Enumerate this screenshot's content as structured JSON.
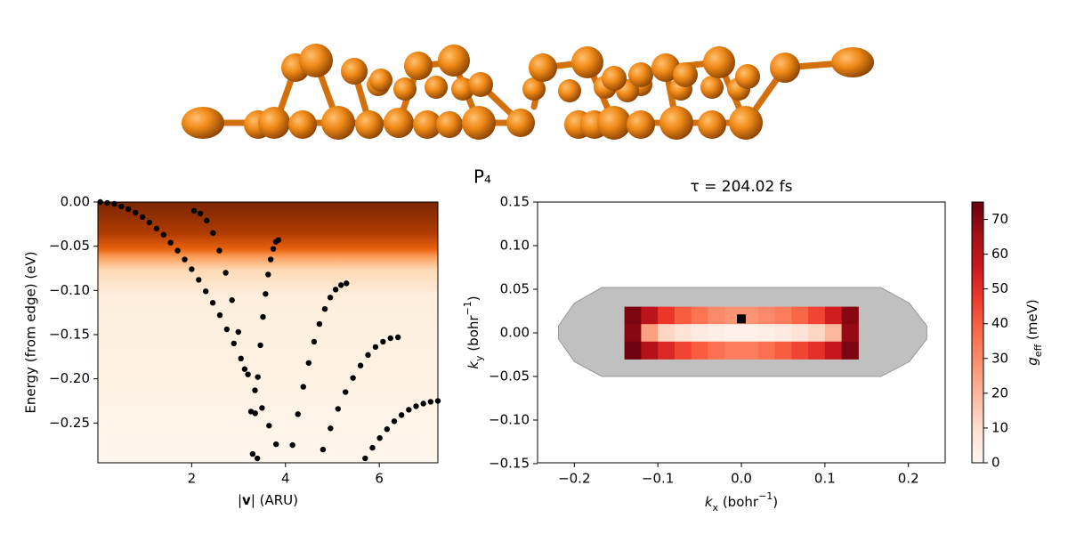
{
  "figure": {
    "title": "P₄"
  },
  "chart_data": [
    {
      "type": "scatter",
      "xlabel": [
        "|",
        "v",
        "| (ARU)"
      ],
      "ylabel": "Energy (from edge) (eV)",
      "color": "#000000",
      "x": [
        0.05,
        0.2,
        0.35,
        0.5,
        0.65,
        0.8,
        0.95,
        1.1,
        1.25,
        1.4,
        1.55,
        1.7,
        1.85,
        2.0,
        2.15,
        2.3,
        2.45,
        2.6,
        2.75,
        2.9,
        3.05,
        3.2,
        3.35,
        3.5,
        3.65,
        3.8,
        2.05,
        2.185,
        2.32,
        2.455,
        2.59,
        2.725,
        2.86,
        2.995,
        3.13,
        3.265,
        3.4,
        3.85,
        3.795,
        3.74,
        3.685,
        3.63,
        3.575,
        3.52,
        3.465,
        3.41,
        3.355,
        3.3,
        5.3,
        5.185,
        5.07,
        4.955,
        4.84,
        4.725,
        4.61,
        4.495,
        4.38,
        4.265,
        4.15,
        6.4,
        6.24,
        6.08,
        5.92,
        5.76,
        5.6,
        5.44,
        5.28,
        5.12,
        4.96,
        4.8,
        7.25,
        7.095,
        6.94,
        6.785,
        6.63,
        6.475,
        6.32,
        6.165,
        6.01,
        5.855,
        5.7
      ],
      "values": [
        0,
        -0.001,
        -0.002,
        -0.005,
        -0.008,
        -0.012,
        -0.017,
        -0.023,
        -0.03,
        -0.037,
        -0.046,
        -0.055,
        -0.065,
        -0.076,
        -0.088,
        -0.101,
        -0.114,
        -0.128,
        -0.144,
        -0.16,
        -0.177,
        -0.195,
        -0.213,
        -0.233,
        -0.253,
        -0.274,
        -0.01,
        -0.013,
        -0.021,
        -0.035,
        -0.055,
        -0.08,
        -0.111,
        -0.147,
        -0.189,
        -0.237,
        -0.29,
        -0.043,
        -0.045,
        -0.053,
        -0.065,
        -0.082,
        -0.104,
        -0.13,
        -0.162,
        -0.198,
        -0.239,
        -0.285,
        -0.092,
        -0.094,
        -0.099,
        -0.108,
        -0.121,
        -0.138,
        -0.158,
        -0.182,
        -0.209,
        -0.24,
        -0.275,
        -0.153,
        -0.154,
        -0.158,
        -0.164,
        -0.173,
        -0.185,
        -0.199,
        -0.215,
        -0.234,
        -0.256,
        -0.28,
        -0.225,
        -0.226,
        -0.228,
        -0.231,
        -0.235,
        -0.241,
        -0.248,
        -0.257,
        -0.267,
        -0.278,
        -0.29
      ],
      "xlim": [
        0,
        7.25
      ],
      "ylim": [
        -0.295,
        0
      ],
      "xticks": [
        2,
        4,
        6
      ],
      "yticks": [
        {
          "value": 0,
          "label": "0.00"
        },
        {
          "value": -0.05,
          "label": "−0.05"
        },
        {
          "value": -0.1,
          "label": "−0.10"
        },
        {
          "value": -0.15,
          "label": "−0.15"
        },
        {
          "value": -0.2,
          "label": "−0.20"
        },
        {
          "value": -0.25,
          "label": "−0.25"
        }
      ]
    },
    {
      "type": "heatmap",
      "title": "τ =  204.02 fs",
      "xlabel": [
        "k",
        "x",
        " (bohr",
        "−1",
        ")"
      ],
      "ylabel": [
        "k",
        "y",
        " (bohr",
        "−1",
        ")"
      ],
      "colormap": "Reds",
      "x": [
        -0.13,
        -0.11,
        -0.09,
        -0.07,
        -0.05,
        -0.03,
        -0.01,
        0.01,
        0.03,
        0.05,
        0.07,
        0.09,
        0.11,
        0.13
      ],
      "y": [
        0.02,
        0,
        -0.02
      ],
      "z": [
        [
          72,
          60,
          48,
          40,
          35,
          30,
          28,
          28,
          30,
          33,
          38,
          45,
          55,
          70
        ],
        [
          70,
          25,
          12,
          8,
          5,
          3,
          2,
          2,
          3,
          5,
          8,
          12,
          20,
          68
        ],
        [
          74,
          62,
          52,
          45,
          40,
          36,
          33,
          33,
          36,
          40,
          45,
          50,
          58,
          72
        ]
      ],
      "region": {
        "color": "#c0c0c0",
        "x": [
          -0.219,
          -0.2,
          -0.167,
          0.167,
          0.201,
          0.222,
          0.222,
          0.201,
          0.167,
          -0.167,
          -0.2,
          -0.219
        ],
        "y": [
          0.008,
          0.034,
          0.052,
          0.052,
          0.034,
          0.008,
          -0.007,
          -0.033,
          -0.05,
          -0.05,
          -0.033,
          -0.007
        ]
      },
      "marker": {
        "x": 0,
        "y": 0.016,
        "color": "#000000"
      },
      "xlim": [
        -0.244,
        0.244
      ],
      "ylim": [
        -0.149,
        0.15
      ],
      "xticks": [
        {
          "value": -0.2,
          "label": "−0.2"
        },
        {
          "value": -0.1,
          "label": "−0.1"
        },
        {
          "value": 0,
          "label": "0.0"
        },
        0.1,
        0.2
      ],
      "yticks": [
        {
          "value": -0.15,
          "label": "−0.15"
        },
        {
          "value": -0.1,
          "label": "−0.10"
        },
        {
          "value": -0.05,
          "label": "−0.05"
        },
        {
          "value": 0,
          "label": "0.00"
        },
        0.05,
        {
          "value": 0.1,
          "label": "0.10"
        },
        0.15
      ],
      "colorbar": {
        "label": [
          "g",
          "eff",
          " (meV)"
        ],
        "lim": [
          0,
          75
        ],
        "ticks": [
          0,
          10,
          20,
          30,
          40,
          50,
          60,
          70
        ]
      }
    }
  ]
}
